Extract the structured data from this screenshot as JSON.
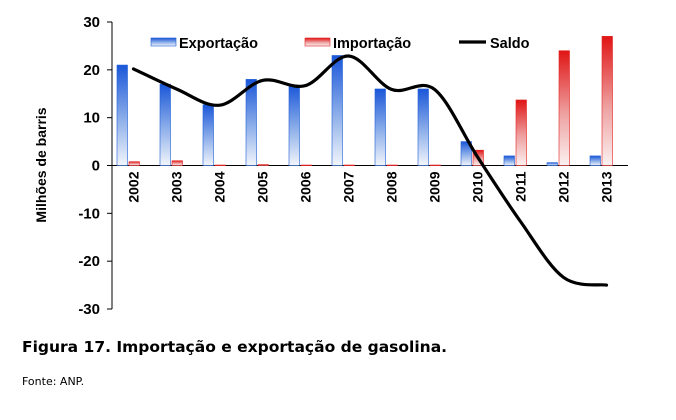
{
  "chart_data": {
    "type": "bar",
    "categories": [
      "2002",
      "2003",
      "2004",
      "2005",
      "2006",
      "2007",
      "2008",
      "2009",
      "2010",
      "2011",
      "2012",
      "2013"
    ],
    "series": [
      {
        "name": "Exportação",
        "type": "bar",
        "color": "#1f5fd6",
        "values": [
          21,
          17,
          12.7,
          18,
          16.8,
          23,
          16,
          16,
          5,
          2,
          0.6,
          2
        ]
      },
      {
        "name": "Importação",
        "type": "bar",
        "color": "#e32222",
        "values": [
          0.8,
          1,
          0.1,
          0.2,
          0.1,
          0.1,
          0.1,
          0.1,
          3.2,
          13.7,
          24,
          27
        ]
      },
      {
        "name": "Saldo",
        "type": "line",
        "color": "#000000",
        "values": [
          20.2,
          16,
          12.6,
          17.8,
          16.7,
          22.9,
          15.9,
          15.9,
          1.8,
          -11.7,
          -23.4,
          -25
        ]
      }
    ],
    "ylabel": "Milhões de barris",
    "ylim": [
      -30,
      30
    ],
    "yticks": [
      -30,
      -20,
      -10,
      0,
      10,
      20,
      30
    ],
    "legend": "top",
    "grid": false
  },
  "caption": "Figura 17. Importação e exportação de gasolina.",
  "source": "Fonte: ANP."
}
